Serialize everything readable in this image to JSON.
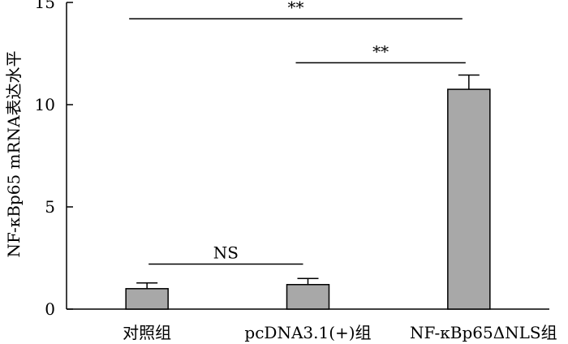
{
  "chart_data": {
    "type": "bar",
    "title": "",
    "xlabel": "",
    "ylabel": "NF-κBp65 mRNA表达水平",
    "ylim": [
      0,
      15
    ],
    "yticks": [
      0,
      5,
      10,
      15
    ],
    "categories": [
      "对照组",
      "pcDNA3.1(+)组",
      "NF-κBp65ΔNLS组"
    ],
    "values": [
      1.0,
      1.2,
      10.75
    ],
    "errors": [
      0.28,
      0.3,
      0.7
    ],
    "bar_color": "#a8a8a8",
    "significance": [
      {
        "from": 0,
        "to": 1,
        "label": "NS",
        "level": 2.2
      },
      {
        "from": 1,
        "to": 2,
        "label": "**",
        "level": 12.05
      },
      {
        "from": 0,
        "to": 2,
        "label": "**",
        "level": 14.2
      }
    ]
  }
}
